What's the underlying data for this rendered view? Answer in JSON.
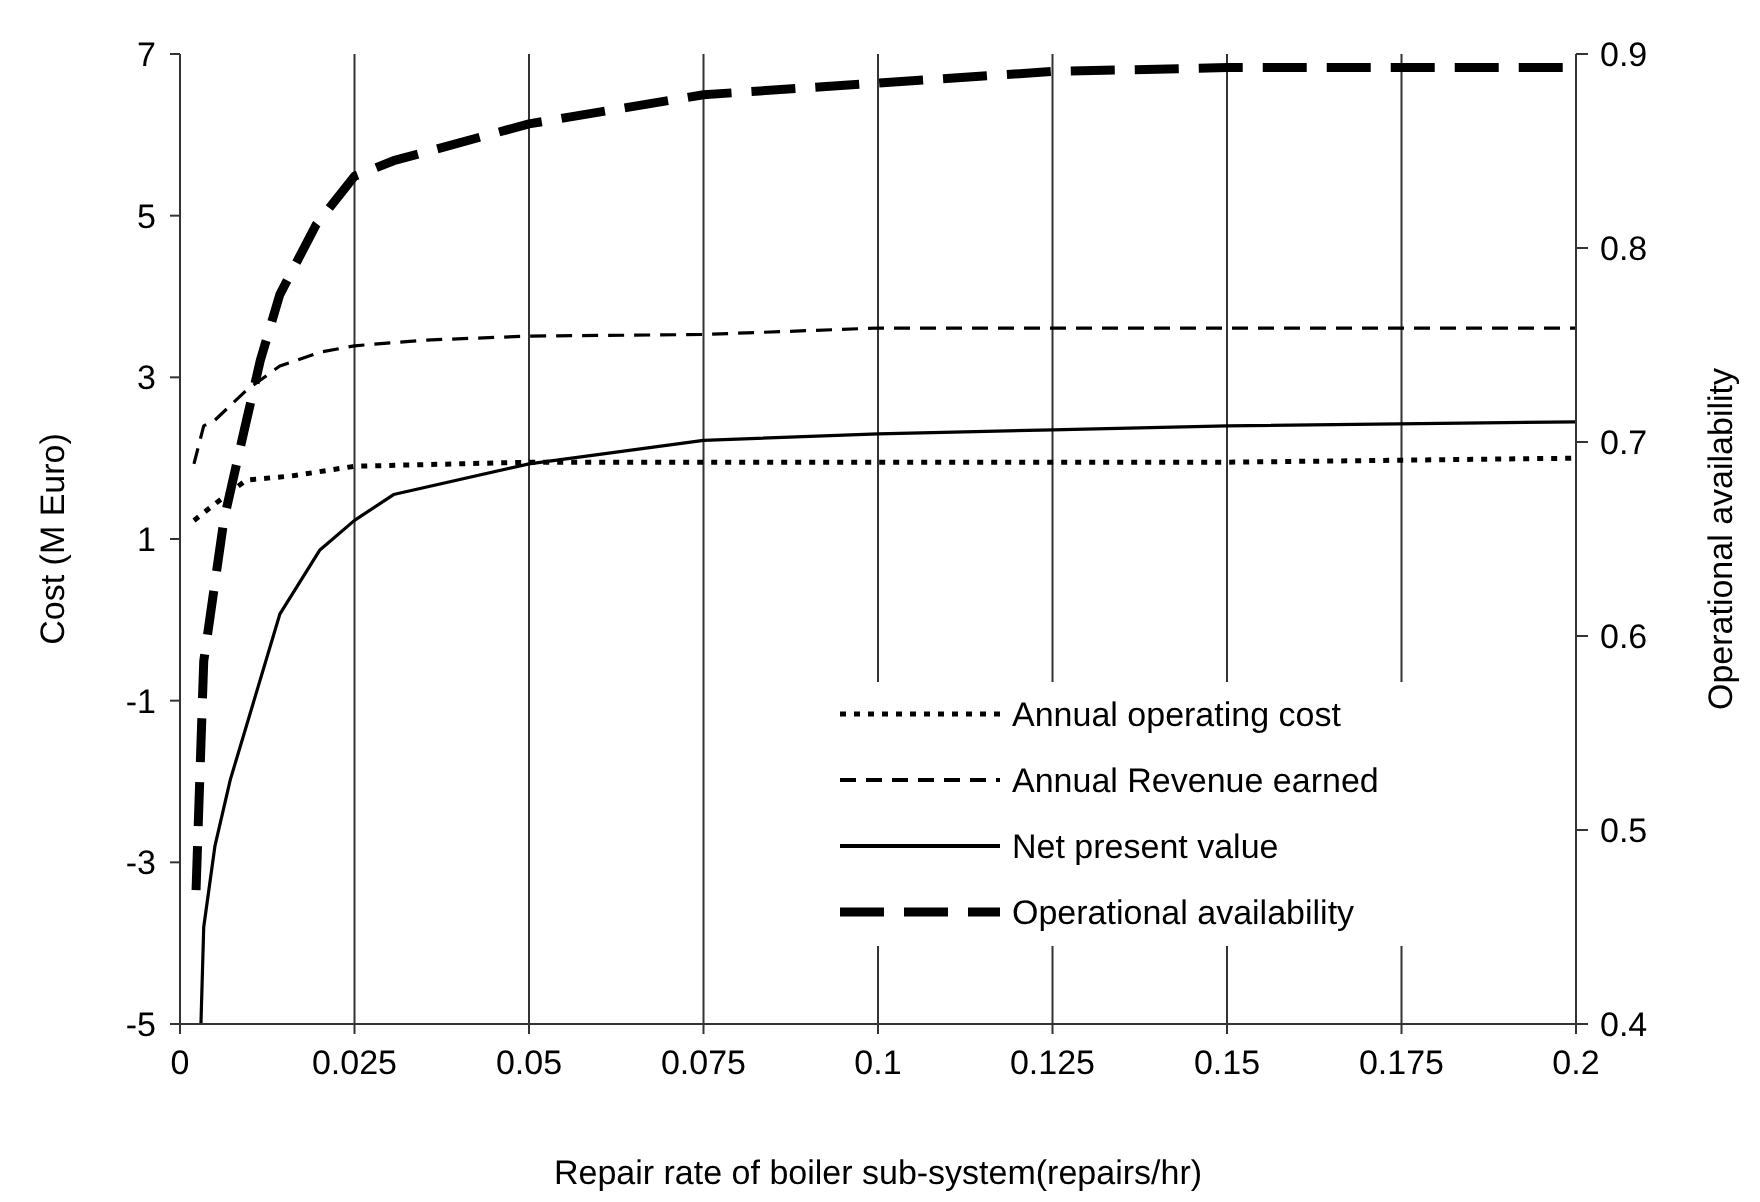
{
  "chart_data": {
    "type": "line",
    "xlabel": "Repair rate of boiler sub-system(repairs/hr)",
    "ylabel": "Cost (M Euro)",
    "y2label": "Operational availability",
    "xlim": [
      0,
      0.2
    ],
    "xticks": [
      0,
      0.025,
      0.05,
      0.075,
      0.1,
      0.125,
      0.15,
      0.175,
      0.2
    ],
    "ylim": [
      -5,
      7
    ],
    "yticks": [
      -5,
      -3,
      -1,
      1,
      3,
      5,
      7
    ],
    "y2lim": [
      0.4,
      0.9
    ],
    "y2ticks": [
      0.4,
      0.5,
      0.6,
      0.7,
      0.8,
      0.9
    ],
    "grid": "x",
    "legend": "bottom right",
    "series": [
      {
        "name": "Annual operating cost",
        "color": "#000000",
        "line_style": "dotted",
        "x": [
          0.002,
          0.0057,
          0.0095,
          0.016,
          0.025,
          0.05,
          0.1,
          0.15,
          0.2
        ],
        "values": [
          1.23,
          1.48,
          1.73,
          1.78,
          1.9,
          1.95,
          1.95,
          1.95,
          2.0
        ]
      },
      {
        "name": "Annual Revenue earned",
        "color": "#000000",
        "line_style": "dashed",
        "x": [
          0.002,
          0.0034,
          0.005,
          0.0095,
          0.0143,
          0.02,
          0.025,
          0.035,
          0.05,
          0.075,
          0.1,
          0.15,
          0.2
        ],
        "values": [
          1.93,
          2.4,
          2.47,
          2.84,
          3.14,
          3.31,
          3.39,
          3.46,
          3.51,
          3.53,
          3.61,
          3.61,
          3.61
        ]
      },
      {
        "name": "Net present value",
        "color": "#000000",
        "line_style": "solid",
        "x": [
          0.003,
          0.0034,
          0.005,
          0.0072,
          0.0143,
          0.02,
          0.025,
          0.0306,
          0.05,
          0.075,
          0.1,
          0.125,
          0.15,
          0.2
        ],
        "values": [
          -5,
          -3.8,
          -2.8,
          -1.98,
          0.07,
          0.86,
          1.23,
          1.55,
          1.93,
          2.22,
          2.3,
          2.35,
          2.4,
          2.45
        ]
      },
      {
        "name": "Operational availability",
        "color": "#000000",
        "line_style": "dashed",
        "axis": "y2",
        "x": [
          0.0023,
          0.0034,
          0.0063,
          0.0092,
          0.0115,
          0.0143,
          0.0195,
          0.025,
          0.0306,
          0.05,
          0.075,
          0.1,
          0.125,
          0.15,
          0.2
        ],
        "values": [
          0.469,
          0.587,
          0.66,
          0.706,
          0.742,
          0.776,
          0.812,
          0.837,
          0.845,
          0.864,
          0.879,
          0.885,
          0.891,
          0.893,
          0.893
        ]
      }
    ]
  }
}
